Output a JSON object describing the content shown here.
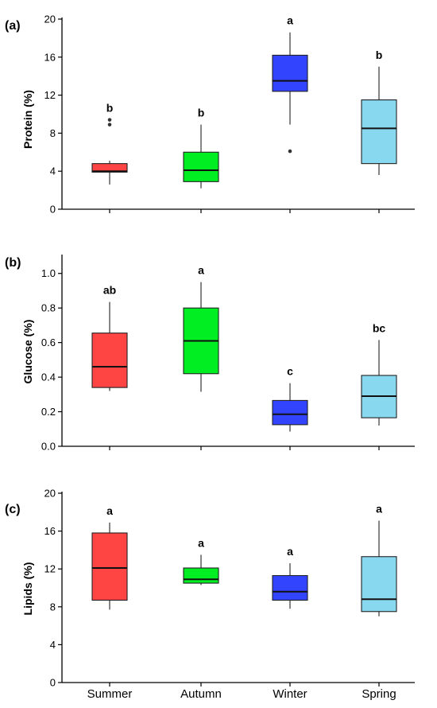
{
  "chart_data": [
    {
      "type": "box",
      "panel_label": "(a)",
      "ylabel": "Protein (%)",
      "ylim": [
        0,
        20
      ],
      "yticks": [
        0,
        4,
        8,
        12,
        16,
        20
      ],
      "ytick_labels": [
        "0",
        "4",
        "8",
        "12",
        "16",
        "20"
      ],
      "categories": [
        "Summer",
        "Autumn",
        "Winter",
        "Spring"
      ],
      "colors": [
        "#ff4444",
        "#00ee22",
        "#3344ff",
        "#88d8f0"
      ],
      "boxes": [
        {
          "whisker_low": 2.6,
          "q1": 3.9,
          "median": 4.0,
          "q3": 4.8,
          "whisker_high": 5.1,
          "outliers": [
            8.9,
            9.4
          ],
          "letter": "b"
        },
        {
          "whisker_low": 2.2,
          "q1": 2.9,
          "median": 4.1,
          "q3": 6.0,
          "whisker_high": 8.9,
          "outliers": [],
          "letter": "b"
        },
        {
          "whisker_low": 8.9,
          "q1": 12.4,
          "median": 13.5,
          "q3": 16.2,
          "whisker_high": 18.6,
          "outliers": [
            6.1
          ],
          "letter": "a"
        },
        {
          "whisker_low": 3.6,
          "q1": 4.8,
          "median": 8.5,
          "q3": 11.5,
          "whisker_high": 15.0,
          "outliers": [],
          "letter": "b"
        }
      ]
    },
    {
      "type": "box",
      "panel_label": "(b)",
      "ylabel": "Glucose (%)",
      "ylim": [
        0,
        1.1
      ],
      "yticks": [
        0,
        0.2,
        0.4,
        0.6,
        0.8,
        1.0
      ],
      "ytick_labels": [
        "0.0",
        "0.2",
        "0.4",
        "0.6",
        "0.8",
        "1.0"
      ],
      "categories": [
        "Summer",
        "Autumn",
        "Winter",
        "Spring"
      ],
      "colors": [
        "#ff4444",
        "#00ee22",
        "#3344ff",
        "#88d8f0"
      ],
      "boxes": [
        {
          "whisker_low": 0.32,
          "q1": 0.34,
          "median": 0.46,
          "q3": 0.655,
          "whisker_high": 0.835,
          "outliers": [],
          "letter": "ab"
        },
        {
          "whisker_low": 0.315,
          "q1": 0.42,
          "median": 0.61,
          "q3": 0.8,
          "whisker_high": 0.95,
          "outliers": [],
          "letter": "a"
        },
        {
          "whisker_low": 0.085,
          "q1": 0.125,
          "median": 0.185,
          "q3": 0.265,
          "whisker_high": 0.365,
          "outliers": [],
          "letter": "c"
        },
        {
          "whisker_low": 0.12,
          "q1": 0.165,
          "median": 0.29,
          "q3": 0.41,
          "whisker_high": 0.615,
          "outliers": [],
          "letter": "bc"
        }
      ]
    },
    {
      "type": "box",
      "panel_label": "(c)",
      "ylabel": "Lipids (%)",
      "ylim": [
        0,
        20
      ],
      "yticks": [
        0,
        4,
        8,
        12,
        16,
        20
      ],
      "ytick_labels": [
        "0",
        "4",
        "8",
        "12",
        "16",
        "20"
      ],
      "categories": [
        "Summer",
        "Autumn",
        "Winter",
        "Spring"
      ],
      "colors": [
        "#ff4444",
        "#00ee22",
        "#3344ff",
        "#88d8f0"
      ],
      "boxes": [
        {
          "whisker_low": 7.7,
          "q1": 8.7,
          "median": 12.1,
          "q3": 15.8,
          "whisker_high": 16.9,
          "outliers": [],
          "letter": "a"
        },
        {
          "whisker_low": 10.3,
          "q1": 10.5,
          "median": 10.9,
          "q3": 12.1,
          "whisker_high": 13.5,
          "outliers": [],
          "letter": "a"
        },
        {
          "whisker_low": 7.8,
          "q1": 8.7,
          "median": 9.6,
          "q3": 11.3,
          "whisker_high": 12.6,
          "outliers": [],
          "letter": "a"
        },
        {
          "whisker_low": 7.0,
          "q1": 7.5,
          "median": 8.8,
          "q3": 13.3,
          "whisker_high": 17.1,
          "outliers": [],
          "letter": "a"
        }
      ]
    }
  ]
}
